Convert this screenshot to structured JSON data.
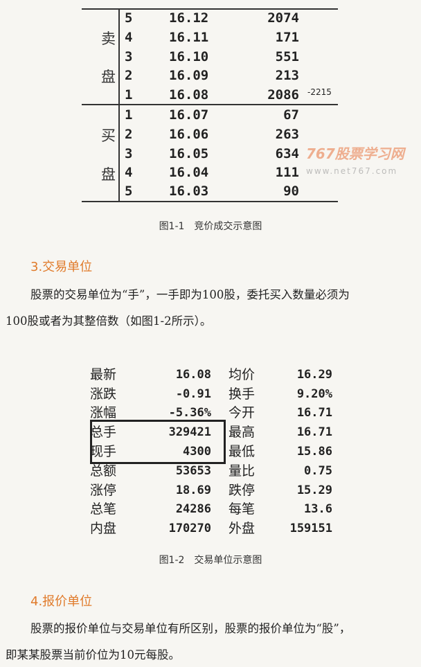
{
  "order_book": {
    "sell_label": [
      "卖",
      "盘"
    ],
    "buy_label": [
      "买",
      "盘"
    ],
    "sell": [
      {
        "level": "5",
        "price": "16.12",
        "volume": "2074"
      },
      {
        "level": "4",
        "price": "16.11",
        "volume": "171"
      },
      {
        "level": "3",
        "price": "16.10",
        "volume": "551"
      },
      {
        "level": "2",
        "price": "16.09",
        "volume": "213"
      },
      {
        "level": "1",
        "price": "16.08",
        "volume": "2086"
      }
    ],
    "buy": [
      {
        "level": "1",
        "price": "16.07",
        "volume": "67"
      },
      {
        "level": "2",
        "price": "16.06",
        "volume": "263"
      },
      {
        "level": "3",
        "price": "16.05",
        "volume": "634"
      },
      {
        "level": "4",
        "price": "16.04",
        "volume": "111"
      },
      {
        "level": "5",
        "price": "16.03",
        "volume": "90"
      }
    ],
    "note": "-2215"
  },
  "watermark": {
    "title": "767股票学习网",
    "url": "www.net767.com"
  },
  "caption1": "图1-1　竞价成交示意图",
  "section3": {
    "heading": "3.交易单位",
    "lines": [
      "股票的交易单位为“手”，一手即为100股，委托买入数量必须为",
      "100股或者为其整倍数（如图1-2所示）。"
    ]
  },
  "quote": [
    {
      "l1": "最新",
      "v1": "16.08",
      "l2": "均价",
      "v2": "16.29"
    },
    {
      "l1": "涨跌",
      "v1": "-0.91",
      "l2": "换手",
      "v2": "9.20%"
    },
    {
      "l1": "涨幅",
      "v1": "-5.36%",
      "l2": "今开",
      "v2": "16.71"
    },
    {
      "l1": "总手",
      "v1": "329421",
      "l2": "最高",
      "v2": "16.71"
    },
    {
      "l1": "现手",
      "v1": "4300",
      "l2": "最低",
      "v2": "15.86"
    },
    {
      "l1": "总额",
      "v1": "53653",
      "l2": "量比",
      "v2": "0.75"
    },
    {
      "l1": "涨停",
      "v1": "18.69",
      "l2": "跌停",
      "v2": "15.29"
    },
    {
      "l1": "总笔",
      "v1": "24286",
      "l2": "每笔",
      "v2": "13.6"
    },
    {
      "l1": "内盘",
      "v1": "170270",
      "l2": "外盘",
      "v2": "159151"
    }
  ],
  "caption2": "图1-2　交易单位示意图",
  "section4": {
    "heading": "4.报价单位",
    "lines": [
      "股票的报价单位与交易单位有所区别，股票的报价单位为“股”，",
      "即某某股票当前价位为10元每股。"
    ]
  },
  "colors": {
    "heading": "#e07a2a",
    "background": "#f7f6f2"
  }
}
